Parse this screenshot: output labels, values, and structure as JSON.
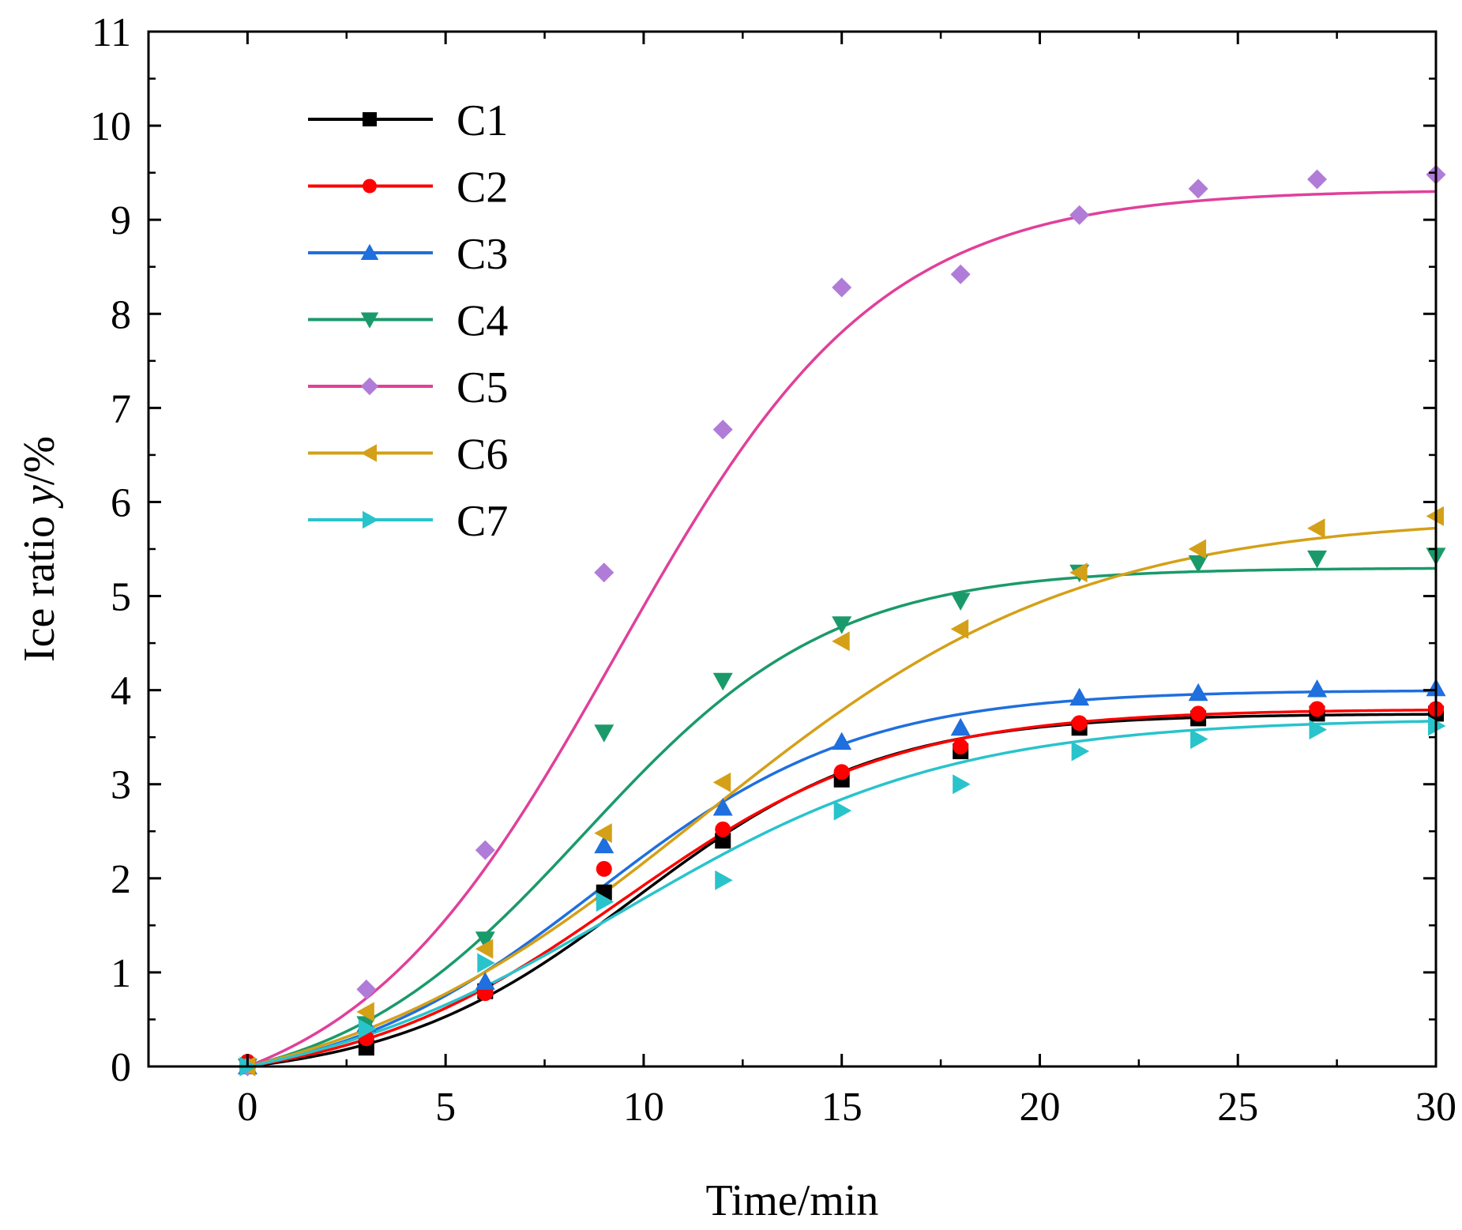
{
  "chart_data": {
    "type": "line",
    "title": "",
    "xlabel": "Time/min",
    "ylabel_prefix": "Ice ratio ",
    "ylabel_var": "y",
    "ylabel_suffix": "/%",
    "xlim": [
      -2.5,
      30
    ],
    "ylim": [
      0,
      11
    ],
    "xticks": [
      0,
      5,
      10,
      15,
      20,
      25,
      30
    ],
    "yticks": [
      0,
      1,
      2,
      3,
      4,
      5,
      6,
      7,
      8,
      9,
      10,
      11
    ],
    "legend_position": "top-left",
    "grid": false,
    "x": [
      0,
      3,
      6,
      9,
      12,
      15,
      18,
      21,
      24,
      27,
      30
    ],
    "series": [
      {
        "name": "C1",
        "color": "#000000",
        "marker": "square",
        "values": [
          0.0,
          0.2,
          0.8,
          1.85,
          2.4,
          3.05,
          3.35,
          3.6,
          3.7,
          3.75,
          3.75
        ],
        "fit": {
          "A": 3.75,
          "k": 0.32,
          "x0": 9.8
        }
      },
      {
        "name": "C2",
        "color": "#ff0000",
        "marker": "circle",
        "values": [
          0.05,
          0.3,
          0.78,
          2.1,
          2.52,
          3.13,
          3.4,
          3.65,
          3.75,
          3.8,
          3.8
        ],
        "fit": {
          "A": 3.8,
          "k": 0.29,
          "x0": 9.5
        }
      },
      {
        "name": "C3",
        "color": "#1f6fde",
        "marker": "triangle-up",
        "values": [
          0.0,
          0.45,
          0.9,
          2.35,
          2.75,
          3.45,
          3.6,
          3.92,
          3.97,
          4.01,
          4.02
        ],
        "fit": {
          "A": 4.0,
          "k": 0.3,
          "x0": 8.8
        }
      },
      {
        "name": "C4",
        "color": "#1a9a6a",
        "marker": "triangle-down",
        "values": [
          0.0,
          0.45,
          1.35,
          3.55,
          4.1,
          4.7,
          4.95,
          5.25,
          5.35,
          5.4,
          5.43
        ],
        "fit": {
          "A": 5.3,
          "k": 0.32,
          "x0": 8.5
        }
      },
      {
        "name": "C5",
        "color": "#b07cd8",
        "line_color": "#e0409a",
        "marker": "diamond",
        "values": [
          0.0,
          0.82,
          2.3,
          5.25,
          6.77,
          8.28,
          8.42,
          9.05,
          9.33,
          9.43,
          9.48
        ],
        "fit": {
          "A": 9.32,
          "k": 0.3,
          "x0": 9.3
        }
      },
      {
        "name": "C6",
        "color": "#d4a017",
        "marker": "triangle-left",
        "values": [
          0.0,
          0.58,
          1.25,
          2.48,
          3.02,
          4.52,
          4.65,
          5.25,
          5.5,
          5.72,
          5.85
        ],
        "fit": {
          "A": 5.85,
          "k": 0.21,
          "x0": 11.5
        }
      },
      {
        "name": "C7",
        "color": "#29c3cc",
        "marker": "triangle-right",
        "values": [
          0.0,
          0.4,
          1.1,
          1.75,
          1.98,
          2.72,
          3.0,
          3.35,
          3.48,
          3.58,
          3.62
        ],
        "fit": {
          "A": 3.7,
          "k": 0.24,
          "x0": 9.5
        }
      }
    ]
  }
}
